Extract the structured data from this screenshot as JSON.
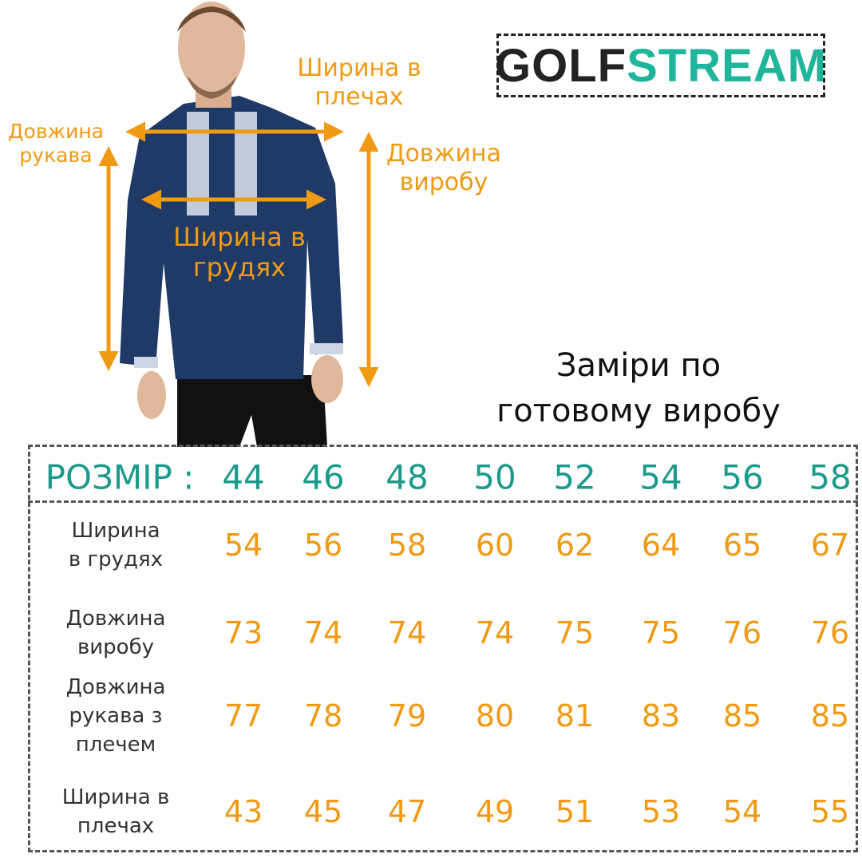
{
  "logo": {
    "part1": "GOLF",
    "part2": "STREAM",
    "colors": {
      "dark": "#222222",
      "accent": "#1fb59b"
    }
  },
  "diagram_labels": {
    "shoulder_width": "Ширина в плечах",
    "sleeve_length": "Довжина рукава",
    "product_length": "Довжина виробу",
    "chest_width": "Ширина в грудях"
  },
  "title": {
    "line1": "Заміри по",
    "line2": "готовому виробу"
  },
  "colors": {
    "orange": "#f09a13",
    "teal": "#1a9b8c"
  },
  "table": {
    "header_label": "РОЗМІР :",
    "sizes": [
      "44",
      "46",
      "48",
      "50",
      "52",
      "54",
      "56",
      "58"
    ],
    "rows": [
      {
        "label_lines": [
          "Ширина",
          "в грудях"
        ],
        "values": [
          "54",
          "56",
          "58",
          "60",
          "62",
          "64",
          "65",
          "67"
        ]
      },
      {
        "label_lines": [
          "Довжина",
          "виробу"
        ],
        "values": [
          "73",
          "74",
          "74",
          "74",
          "75",
          "75",
          "76",
          "76"
        ]
      },
      {
        "label_lines": [
          "Довжина",
          "рукава з",
          "плечем"
        ],
        "values": [
          "77",
          "78",
          "79",
          "80",
          "81",
          "83",
          "85",
          "85"
        ]
      },
      {
        "label_lines": [
          "Ширина в",
          "плечах"
        ],
        "values": [
          "43",
          "45",
          "47",
          "49",
          "51",
          "53",
          "54",
          "55"
        ]
      }
    ]
  }
}
